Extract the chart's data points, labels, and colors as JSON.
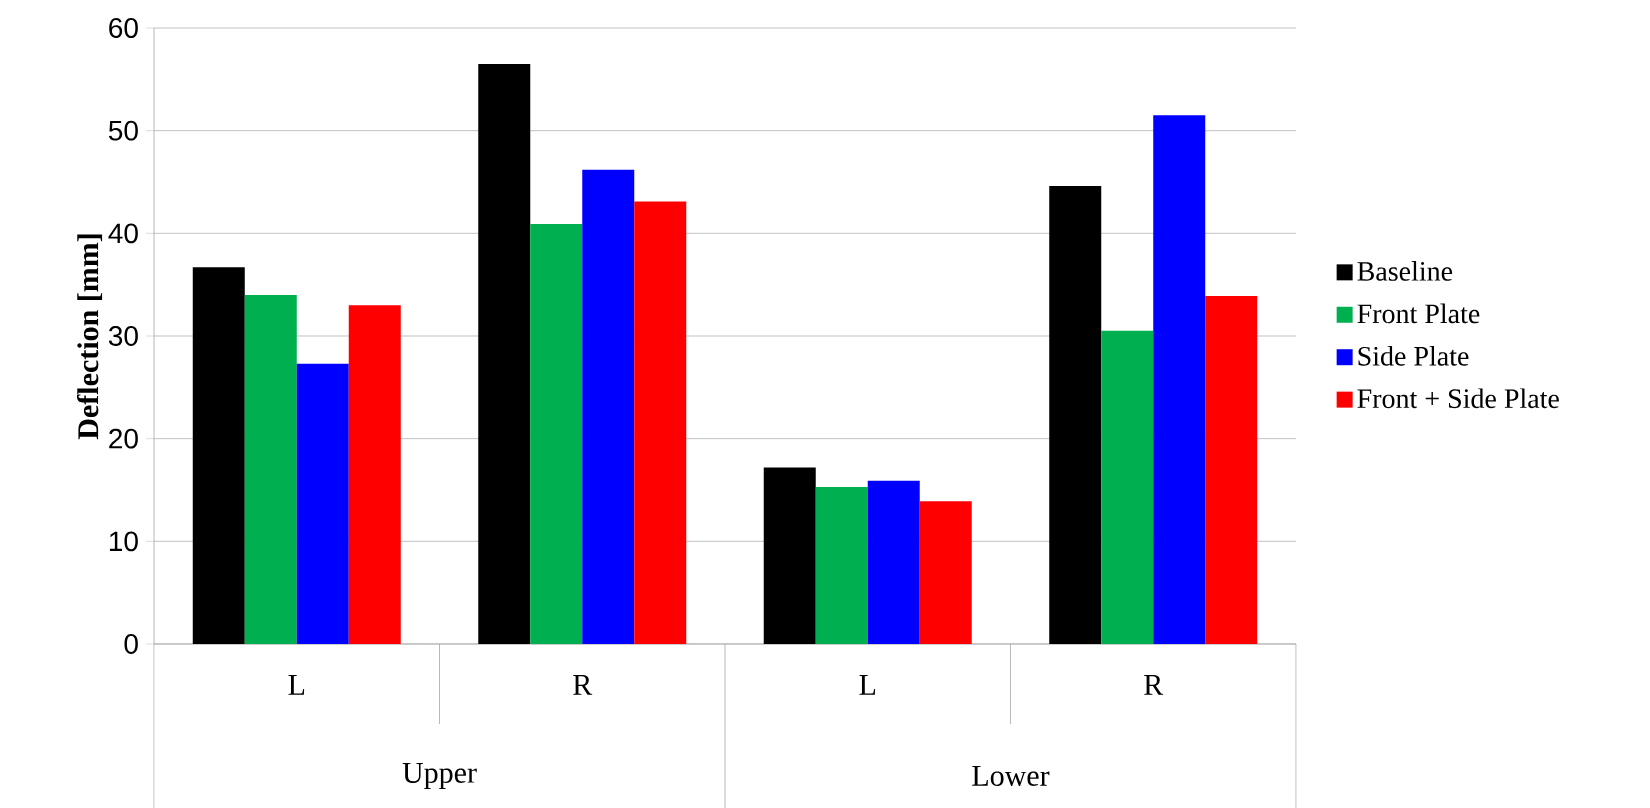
{
  "chart_data": {
    "type": "bar",
    "ylabel": "Deflection [mm]",
    "categories": [
      "L",
      "R",
      "L",
      "R"
    ],
    "series": [
      {
        "name": "Baseline",
        "color": "#000000",
        "values": [
          36.7,
          56.5,
          17.2,
          44.6
        ]
      },
      {
        "name": "Front Plate",
        "color": "#00b050",
        "values": [
          34.0,
          40.9,
          15.3,
          30.5
        ]
      },
      {
        "name": "Side Plate",
        "color": "#0000ff",
        "values": [
          27.3,
          46.2,
          15.9,
          51.5
        ]
      },
      {
        "name": "Front + Side Plate",
        "color": "#ff0000",
        "values": [
          33.0,
          43.1,
          13.9,
          33.9
        ]
      }
    ],
    "annotations": [
      "Upper",
      "Lower"
    ],
    "ylim": [
      0,
      60
    ],
    "yticks": [
      0,
      10,
      20,
      30,
      40,
      50,
      60
    ],
    "grid": "y",
    "legend": "right"
  }
}
